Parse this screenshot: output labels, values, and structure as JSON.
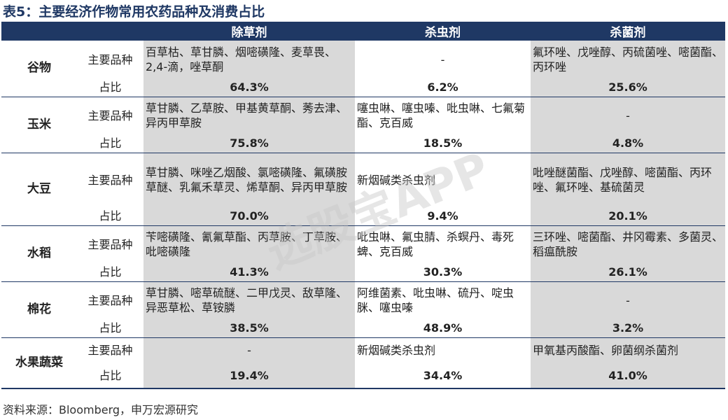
{
  "title": "表5：主要经济作物常用农药品种及消费占比",
  "table": {
    "header": [
      "除草剂",
      "杀虫剂",
      "杀菌剂"
    ],
    "rows": [
      {
        "crop": "谷物",
        "variety_label": "主要品种",
        "ratio_label": "占比",
        "varieties": [
          "百草枯、草甘膦、烟嘧磺隆、麦草畏、2,4-滴，唑草酮",
          "-",
          "氟环唑、戊唑醇、丙硫菌唑、嘧菌酯、丙环唑"
        ],
        "ratios": [
          "64.3%",
          "6.2%",
          "25.6%"
        ]
      },
      {
        "crop": "玉米",
        "variety_label": "主要品种",
        "ratio_label": "占比",
        "varieties": [
          "草甘膦、乙草胺、甲基黄草酮、莠去津、异丙甲草胺",
          "噻虫啉、噻虫嗪、吡虫啉、七氟菊酯、克百威",
          "-"
        ],
        "ratios": [
          "75.8%",
          "18.5%",
          "4.8%"
        ]
      },
      {
        "crop": "大豆",
        "variety_label": "主要品种",
        "ratio_label": "占比",
        "varieties": [
          "草甘膦、咪唑乙烟酸、氯嘧磺隆、氟磺胺草醚、乳氟禾草灵、烯草酮、异丙甲草胺",
          "新烟碱类杀虫剂",
          "吡唑醚菌酯、戊唑醇、嘧菌酯、丙环唑、氟环唑、基硫菌灵"
        ],
        "ratios": [
          "70.0%",
          "9.4%",
          "20.1%"
        ]
      },
      {
        "crop": "水稻",
        "variety_label": "主要品种",
        "ratio_label": "占比",
        "varieties": [
          "苄嘧磺隆、氰氟草酯、丙草胺、丁草胺、吡嘧磺隆",
          "吡虫啉、氟虫腈、杀螟丹、毒死蜱、克百威",
          "三环唑、嘧菌酯、井冈霉素、多菌灵、稻瘟酰胺"
        ],
        "ratios": [
          "41.3%",
          "30.3%",
          "26.1%"
        ]
      },
      {
        "crop": "棉花",
        "variety_label": "主要品种",
        "ratio_label": "占比",
        "varieties": [
          "草甘膦、嘧草硫醚、二甲戊灵、敌草隆、异恶草松、草铵膦",
          "阿维菌素、吡虫啉、硫丹、啶虫脒、噻虫嗪",
          "-"
        ],
        "ratios": [
          "38.5%",
          "48.9%",
          "3.2%"
        ]
      },
      {
        "crop": "水果蔬菜",
        "variety_label": "主要品种",
        "ratio_label": "占比",
        "varieties": [
          "-",
          "新烟碱类杀虫剂",
          "甲氧基丙酸酯、卵菌纲杀菌剂"
        ],
        "ratios": [
          "19.4%",
          "34.4%",
          "41.0%"
        ]
      }
    ]
  },
  "source": "资料来源：Bloomberg，申万宏源研究",
  "watermark": "选股宝APP"
}
